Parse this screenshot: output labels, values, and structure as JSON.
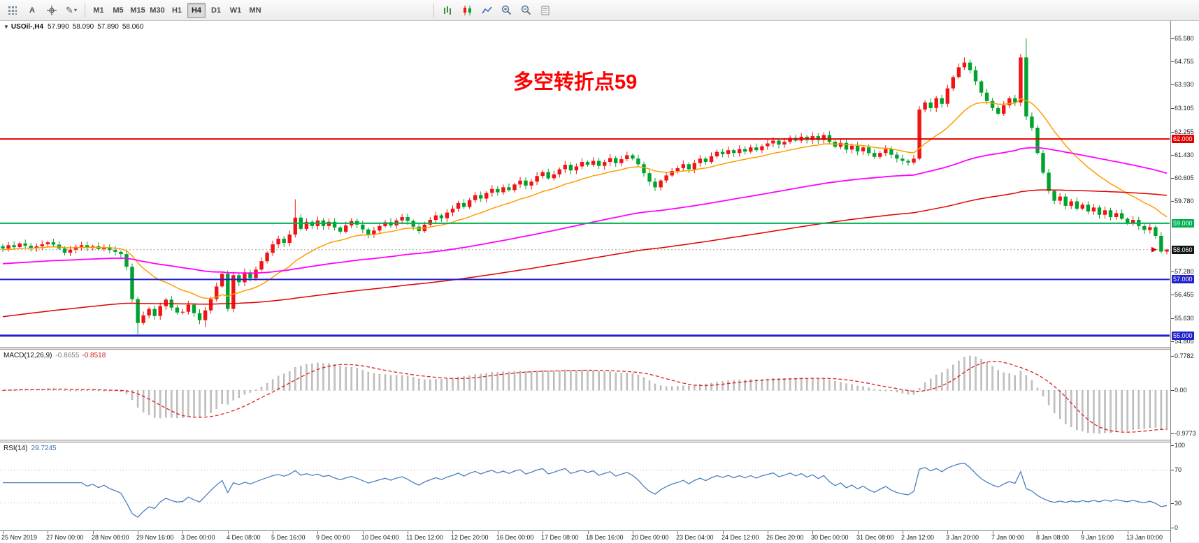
{
  "toolbar": {
    "text_tool": "A",
    "draw_caret": "▾",
    "timeframes": [
      "M1",
      "M5",
      "M15",
      "M30",
      "H1",
      "H4",
      "D1",
      "W1",
      "MN"
    ],
    "active_timeframe": "H4",
    "icon_names": [
      "grid-icon",
      "text-tool",
      "crosshair-tool",
      "pencil-tool",
      "chart-bars",
      "chart-candles",
      "chart-line",
      "zoom-in",
      "zoom-out",
      "templates"
    ]
  },
  "chart_data": {
    "type": "candlestick",
    "title": "USOil- H4 candlestick chart with MACD and RSI",
    "symbol_line": {
      "collapse": "▼",
      "symbol": "USOil-,H4",
      "open": "57.990",
      "high": "58.090",
      "low": "57.890",
      "close": "58.060"
    },
    "annotation": {
      "text": "多空转折点59",
      "color": "#ff0000"
    },
    "price_axis": {
      "min": 54.6,
      "max": 66.2,
      "labels": [
        {
          "text": "65.580",
          "value": 65.58
        },
        {
          "text": "64.755",
          "value": 64.755
        },
        {
          "text": "63.930",
          "value": 63.93
        },
        {
          "text": "63.105",
          "value": 63.105
        },
        {
          "text": "62.255",
          "value": 62.255
        },
        {
          "text": "61.430",
          "value": 61.43
        },
        {
          "text": "60.605",
          "value": 60.605
        },
        {
          "text": "59.780",
          "value": 59.78
        },
        {
          "text": "57.280",
          "value": 57.28
        },
        {
          "text": "56.455",
          "value": 56.455
        },
        {
          "text": "55.630",
          "value": 55.63
        },
        {
          "text": "54.805",
          "value": 54.805
        }
      ]
    },
    "hlines": [
      {
        "value": 62.0,
        "label": "62.000",
        "color": "#e10000",
        "thickness": 2
      },
      {
        "value": 59.0,
        "label": "59.000",
        "color": "#00b050",
        "thickness": 2
      },
      {
        "value": 57.0,
        "label": "57.000",
        "color": "#2020cf",
        "thickness": 2
      },
      {
        "value": 55.0,
        "label": "55.000",
        "color": "#2020cf",
        "thickness": 3
      }
    ],
    "current_price": {
      "value": 58.06,
      "label": "58.060",
      "line_color": "#a0a0a0",
      "label_bg": "#141414",
      "arrow_color": "#e10000"
    },
    "candles": {
      "up_color": "#f01414",
      "down_color": "#00a32e",
      "closes": [
        58.1,
        58.22,
        58.15,
        58.28,
        58.2,
        58.12,
        58.18,
        58.25,
        58.32,
        58.24,
        58.1,
        57.95,
        58.06,
        58.16,
        58.22,
        58.12,
        58.18,
        58.08,
        58.15,
        58.05,
        57.98,
        57.9,
        57.45,
        56.3,
        55.45,
        55.72,
        55.95,
        55.7,
        56.05,
        56.28,
        56.0,
        55.82,
        55.85,
        56.1,
        55.8,
        55.55,
        55.9,
        56.3,
        56.75,
        57.2,
        55.95,
        57.15,
        56.9,
        57.25,
        57.05,
        57.35,
        57.65,
        57.95,
        58.25,
        58.45,
        58.3,
        58.6,
        59.2,
        58.8,
        59.05,
        58.9,
        59.1,
        58.9,
        59.05,
        58.85,
        58.7,
        58.92,
        59.08,
        58.95,
        58.78,
        58.6,
        58.74,
        58.9,
        59.04,
        58.92,
        59.1,
        59.22,
        59.08,
        58.88,
        58.72,
        58.95,
        59.12,
        59.28,
        59.18,
        59.38,
        59.52,
        59.72,
        59.58,
        59.82,
        60.0,
        59.88,
        60.08,
        60.22,
        60.1,
        60.28,
        60.18,
        60.38,
        60.52,
        60.34,
        60.48,
        60.68,
        60.82,
        60.6,
        60.74,
        60.92,
        61.08,
        60.88,
        61.02,
        61.18,
        61.08,
        61.22,
        61.04,
        61.18,
        61.32,
        61.14,
        61.28,
        61.42,
        61.3,
        61.1,
        60.78,
        60.48,
        60.28,
        60.52,
        60.7,
        60.86,
        60.96,
        61.1,
        60.92,
        61.14,
        61.3,
        61.18,
        61.38,
        61.54,
        61.46,
        61.6,
        61.5,
        61.64,
        61.55,
        61.7,
        61.6,
        61.74,
        61.84,
        61.94,
        61.8,
        61.9,
        62.04,
        61.94,
        62.08,
        61.96,
        62.1,
        61.96,
        62.14,
        61.9,
        61.72,
        61.86,
        61.62,
        61.76,
        61.56,
        61.7,
        61.5,
        61.36,
        61.5,
        61.64,
        61.44,
        61.3,
        61.22,
        61.16,
        61.3,
        63.05,
        63.3,
        63.1,
        63.45,
        63.25,
        63.8,
        64.2,
        64.55,
        64.72,
        64.45,
        64.05,
        63.65,
        63.35,
        63.1,
        62.9,
        63.2,
        63.45,
        63.3,
        64.9,
        62.8,
        62.4,
        61.5,
        60.8,
        60.15,
        59.8,
        59.95,
        59.62,
        59.78,
        59.52,
        59.66,
        59.42,
        59.56,
        59.3,
        59.46,
        59.22,
        59.36,
        59.16,
        59.02,
        59.12,
        58.9,
        58.76,
        58.86,
        58.55,
        57.99,
        58.06
      ],
      "overrides": {
        "24": {
          "low": 55.05
        },
        "36": {
          "low": 55.3
        },
        "52": {
          "high": 59.85
        },
        "171": {
          "high": 64.9
        },
        "182": {
          "high": 65.58
        },
        "207": {
          "high": 58.09,
          "low": 57.89
        }
      }
    },
    "mas": [
      {
        "name": "ma-fast-orange",
        "color": "#ff9c00",
        "period": 18,
        "seed": 58.05,
        "width": 1.5
      },
      {
        "name": "ma-mid-magenta",
        "color": "#ff00ff",
        "period": 100,
        "seed": 57.55,
        "width": 1.8
      },
      {
        "name": "ma-slow-red",
        "color": "#e00000",
        "period": 200,
        "seed": 55.65,
        "width": 1.5
      }
    ],
    "macd": {
      "label": "MACD(12,26,9)",
      "main_value": "-0.8655",
      "signal_value": "-0.8518",
      "fast": 12,
      "slow": 26,
      "signal_period": 9,
      "bar_color": "#c4c4c4",
      "bar_stroke": "#aaaaaa",
      "signal_color": "#e02020",
      "axis_max": "0.7782",
      "axis_zero": "0.00",
      "axis_min": "-0.9773"
    },
    "rsi": {
      "label": "RSI(14)",
      "value": "29.7245",
      "period": 14,
      "color": "#4a7fc1",
      "levels": [
        70,
        30
      ],
      "axis_labels": [
        {
          "text": "100",
          "value": 100
        },
        {
          "text": "70",
          "value": 70
        },
        {
          "text": "30",
          "value": 30
        },
        {
          "text": "0",
          "value": 0
        }
      ]
    },
    "time_axis": {
      "labels": [
        "25 Nov 2019",
        "27 Nov 00:00",
        "28 Nov 08:00",
        "29 Nov 16:00",
        "3 Dec 00:00",
        "4 Dec 08:00",
        "5 Dec 16:00",
        "9 Dec 00:00",
        "10 Dec 04:00",
        "11 Dec 12:00",
        "12 Dec 20:00",
        "16 Dec 00:00",
        "17 Dec 08:00",
        "18 Dec 16:00",
        "20 Dec 00:00",
        "23 Dec 04:00",
        "24 Dec 12:00",
        "26 Dec 20:00",
        "30 Dec 00:00",
        "31 Dec 08:00",
        "2 Jan 12:00",
        "3 Jan 20:00",
        "7 Jan 00:00",
        "8 Jan 08:00",
        "9 Jan 16:00",
        "13 Jan 00:00"
      ]
    }
  }
}
